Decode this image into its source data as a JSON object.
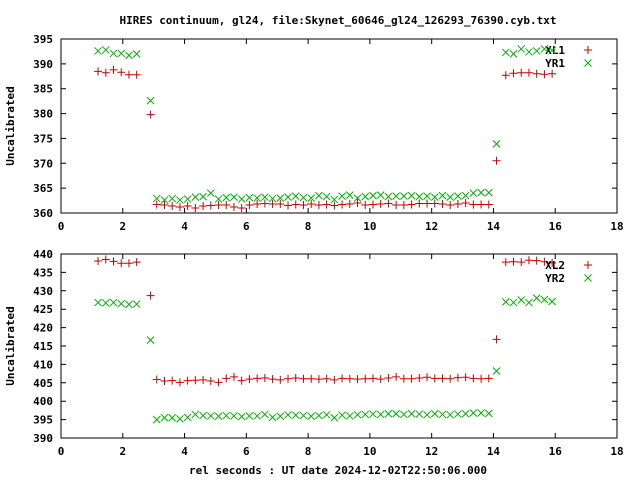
{
  "title": "HIRES continuum, gl24, file:Skynet_60646_gl24_126293_76390.cyb.txt",
  "xlabel": "rel seconds : UT date 2024-12-02T22:50:06.000",
  "colors": {
    "red": "#cc0000",
    "green": "#00b000"
  },
  "chart_data": [
    {
      "type": "scatter",
      "ylabel": "Uncalibrated",
      "xlim": [
        0,
        18
      ],
      "ylim": [
        360,
        395
      ],
      "xticks": [
        "0",
        "2",
        "4",
        "6",
        "8",
        "10",
        "12",
        "14",
        "16",
        "18"
      ],
      "yticks": [
        "360",
        "365",
        "370",
        "375",
        "380",
        "385",
        "390",
        "395"
      ],
      "legend_position": "top-right",
      "series": [
        {
          "name": "XL1",
          "marker": "plus",
          "color": "#cc0000",
          "x": [
            1.2,
            1.45,
            1.7,
            1.95,
            2.2,
            2.45,
            2.9,
            3.1,
            3.35,
            3.6,
            3.85,
            4.1,
            4.35,
            4.6,
            4.85,
            5.1,
            5.35,
            5.6,
            5.85,
            6.1,
            6.35,
            6.6,
            6.85,
            7.1,
            7.35,
            7.6,
            7.85,
            8.1,
            8.35,
            8.6,
            8.85,
            9.1,
            9.35,
            9.6,
            9.85,
            10.1,
            10.35,
            10.6,
            10.85,
            11.1,
            11.35,
            11.6,
            11.85,
            12.1,
            12.35,
            12.6,
            12.85,
            13.1,
            13.35,
            13.6,
            13.85,
            14.1,
            14.4,
            14.65,
            14.9,
            15.15,
            15.4,
            15.65,
            15.9
          ],
          "y": [
            388.5,
            388.2,
            388.8,
            388.3,
            387.8,
            387.8,
            379.8,
            361.7,
            361.6,
            361.4,
            361.2,
            361.4,
            361.0,
            361.4,
            361.5,
            361.6,
            361.6,
            361.2,
            361.0,
            361.6,
            361.8,
            361.9,
            361.8,
            361.8,
            361.5,
            361.7,
            361.6,
            361.8,
            361.6,
            361.7,
            361.5,
            361.7,
            361.8,
            362.0,
            361.6,
            361.7,
            361.8,
            361.9,
            361.6,
            361.6,
            361.7,
            361.9,
            361.9,
            361.9,
            361.8,
            361.6,
            361.8,
            362.0,
            361.7,
            361.7,
            361.7,
            370.5,
            387.7,
            388.1,
            388.2,
            388.2,
            388.0,
            387.9,
            388.0
          ]
        },
        {
          "name": "YR1",
          "marker": "cross",
          "color": "#00b000",
          "x": [
            1.2,
            1.45,
            1.7,
            1.95,
            2.2,
            2.45,
            2.9,
            3.1,
            3.35,
            3.6,
            3.85,
            4.1,
            4.35,
            4.6,
            4.85,
            5.1,
            5.35,
            5.6,
            5.85,
            6.1,
            6.35,
            6.6,
            6.85,
            7.1,
            7.35,
            7.6,
            7.85,
            8.1,
            8.35,
            8.6,
            8.85,
            9.1,
            9.35,
            9.6,
            9.85,
            10.1,
            10.35,
            10.6,
            10.85,
            11.1,
            11.35,
            11.6,
            11.85,
            12.1,
            12.35,
            12.6,
            12.85,
            13.1,
            13.35,
            13.6,
            13.85,
            14.1,
            14.4,
            14.65,
            14.9,
            15.15,
            15.4,
            15.65,
            15.9
          ],
          "y": [
            392.6,
            392.8,
            392.1,
            392.1,
            391.7,
            392.0,
            382.6,
            362.9,
            362.6,
            362.9,
            362.6,
            362.8,
            363.2,
            363.3,
            364.0,
            362.8,
            363.1,
            363.2,
            362.8,
            363.1,
            363.0,
            363.2,
            362.9,
            363.0,
            363.2,
            363.4,
            363.1,
            363.0,
            363.5,
            363.3,
            362.7,
            363.4,
            363.6,
            363.0,
            363.3,
            363.5,
            363.6,
            363.3,
            363.4,
            363.4,
            363.5,
            363.3,
            363.4,
            363.2,
            363.5,
            363.2,
            363.4,
            363.5,
            364.0,
            364.1,
            364.1,
            373.9,
            392.3,
            392.0,
            393.0,
            392.4,
            392.6,
            393.0,
            392.7
          ]
        }
      ]
    },
    {
      "type": "scatter",
      "ylabel": "Uncalibrated",
      "xlim": [
        0,
        18
      ],
      "ylim": [
        390,
        440
      ],
      "xticks": [
        "0",
        "2",
        "4",
        "6",
        "8",
        "10",
        "12",
        "14",
        "16",
        "18"
      ],
      "yticks": [
        "390",
        "395",
        "400",
        "405",
        "410",
        "415",
        "420",
        "425",
        "430",
        "435",
        "440"
      ],
      "legend_position": "top-right",
      "series": [
        {
          "name": "XL2",
          "marker": "plus",
          "color": "#cc0000",
          "x": [
            1.2,
            1.45,
            1.7,
            1.95,
            2.2,
            2.45,
            2.9,
            3.1,
            3.35,
            3.6,
            3.85,
            4.1,
            4.35,
            4.6,
            4.85,
            5.1,
            5.35,
            5.6,
            5.85,
            6.1,
            6.35,
            6.6,
            6.85,
            7.1,
            7.35,
            7.6,
            7.85,
            8.1,
            8.35,
            8.6,
            8.85,
            9.1,
            9.35,
            9.6,
            9.85,
            10.1,
            10.35,
            10.6,
            10.85,
            11.1,
            11.35,
            11.6,
            11.85,
            12.1,
            12.35,
            12.6,
            12.85,
            13.1,
            13.35,
            13.6,
            13.85,
            14.1,
            14.4,
            14.65,
            14.9,
            15.15,
            15.4,
            15.65,
            15.9
          ],
          "y": [
            438.1,
            438.5,
            438.0,
            437.5,
            437.5,
            437.8,
            428.7,
            405.9,
            405.5,
            405.6,
            405.1,
            405.6,
            405.7,
            405.8,
            405.5,
            405.1,
            406.2,
            406.6,
            405.6,
            406.0,
            406.2,
            406.3,
            406.0,
            405.8,
            406.1,
            406.3,
            406.1,
            406.1,
            406.0,
            406.1,
            405.8,
            406.2,
            406.1,
            406.0,
            406.1,
            406.2,
            406.0,
            406.3,
            406.6,
            406.1,
            406.1,
            406.3,
            406.5,
            406.2,
            406.2,
            406.1,
            406.4,
            406.5,
            406.2,
            406.1,
            406.2,
            416.8,
            437.8,
            437.9,
            437.8,
            438.3,
            438.2,
            437.9,
            437.6
          ]
        },
        {
          "name": "YR2",
          "marker": "cross",
          "color": "#00b000",
          "x": [
            1.2,
            1.45,
            1.7,
            1.95,
            2.2,
            2.45,
            2.9,
            3.1,
            3.35,
            3.6,
            3.85,
            4.1,
            4.35,
            4.6,
            4.85,
            5.1,
            5.35,
            5.6,
            5.85,
            6.1,
            6.35,
            6.6,
            6.85,
            7.1,
            7.35,
            7.6,
            7.85,
            8.1,
            8.35,
            8.6,
            8.85,
            9.1,
            9.35,
            9.6,
            9.85,
            10.1,
            10.35,
            10.6,
            10.85,
            11.1,
            11.35,
            11.6,
            11.85,
            12.1,
            12.35,
            12.6,
            12.85,
            13.1,
            13.35,
            13.6,
            13.85,
            14.1,
            14.4,
            14.65,
            14.9,
            15.15,
            15.4,
            15.65,
            15.9
          ],
          "y": [
            426.8,
            426.7,
            426.8,
            426.5,
            426.3,
            426.4,
            416.6,
            395.0,
            395.5,
            395.5,
            395.2,
            395.6,
            396.4,
            396.1,
            396.0,
            395.9,
            396.1,
            396.0,
            395.8,
            396.0,
            396.0,
            396.4,
            395.6,
            395.9,
            396.3,
            396.2,
            396.1,
            395.9,
            396.1,
            396.3,
            395.5,
            396.2,
            396.0,
            396.3,
            396.4,
            396.5,
            396.4,
            396.6,
            396.6,
            396.4,
            396.6,
            396.5,
            396.3,
            396.6,
            396.4,
            396.3,
            396.5,
            396.6,
            396.8,
            396.8,
            396.7,
            408.2,
            427.0,
            426.8,
            427.5,
            426.8,
            428.0,
            427.6,
            427.1
          ]
        }
      ]
    }
  ]
}
